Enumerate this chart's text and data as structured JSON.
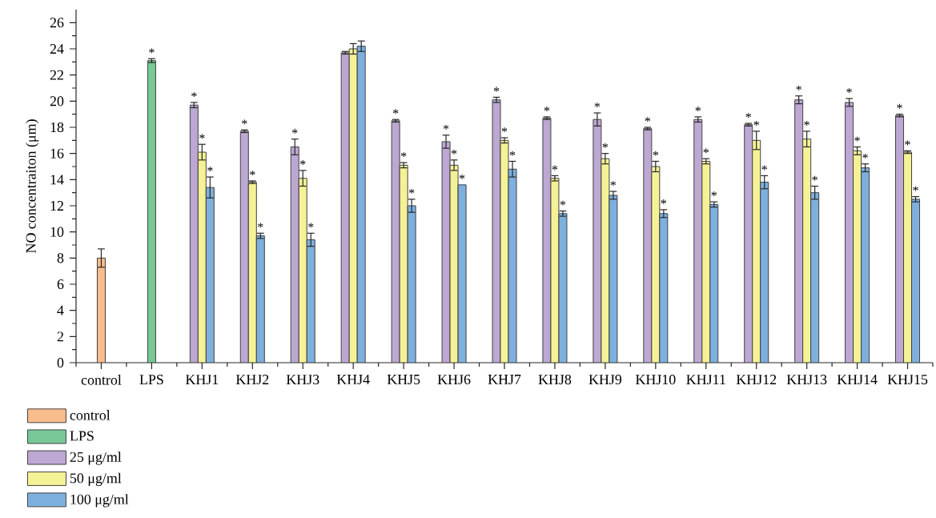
{
  "chart_data": {
    "type": "bar",
    "ylabel": "NO concentraiton (μm)",
    "categories": [
      "control",
      "LPS",
      "KHJ1",
      "KHJ2",
      "KHJ3",
      "KHJ4",
      "KHJ5",
      "KHJ6",
      "KHJ7",
      "KHJ8",
      "KHJ9",
      "KHJ10",
      "KHJ11",
      "KHJ12",
      "KHJ13",
      "KHJ14",
      "KHJ15"
    ],
    "ylim": [
      0,
      27
    ],
    "yticks": [
      0,
      {
        "value": 1,
        "label": null
      },
      2,
      {
        "value": 3,
        "label": null
      },
      4,
      {
        "value": 5,
        "label": null
      },
      6,
      {
        "value": 7,
        "label": null
      },
      8,
      {
        "value": 9,
        "label": null
      },
      10,
      {
        "value": 11,
        "label": null
      },
      12,
      {
        "value": 13,
        "label": null
      },
      14,
      {
        "value": 15,
        "label": null
      },
      16,
      {
        "value": 17,
        "label": null
      },
      18,
      {
        "value": 19,
        "label": null
      },
      20,
      {
        "value": 21,
        "label": null
      },
      22,
      {
        "value": 23,
        "label": null
      },
      24,
      {
        "value": 25,
        "label": null
      },
      26
    ],
    "legend": "bottom left",
    "series": [
      {
        "name": "control",
        "color": "#f9bc8c",
        "values": [
          8.0,
          null,
          null,
          null,
          null,
          null,
          null,
          null,
          null,
          null,
          null,
          null,
          null,
          null,
          null,
          null,
          null
        ],
        "errors": [
          0.7,
          null,
          null,
          null,
          null,
          null,
          null,
          null,
          null,
          null,
          null,
          null,
          null,
          null,
          null,
          null,
          null
        ]
      },
      {
        "name": "LPS",
        "color": "#78c898",
        "values": [
          null,
          23.1,
          null,
          null,
          null,
          null,
          null,
          null,
          null,
          null,
          null,
          null,
          null,
          null,
          null,
          null,
          null
        ],
        "errors": [
          null,
          0.15,
          null,
          null,
          null,
          null,
          null,
          null,
          null,
          null,
          null,
          null,
          null,
          null,
          null,
          null,
          null
        ],
        "value_labels": [
          null,
          "*",
          null,
          null,
          null,
          null,
          null,
          null,
          null,
          null,
          null,
          null,
          null,
          null,
          null,
          null,
          null
        ]
      },
      {
        "name": "25 μg/ml",
        "color": "#bca8d2",
        "values": [
          null,
          null,
          19.7,
          17.7,
          16.5,
          23.7,
          18.5,
          16.9,
          20.1,
          18.7,
          18.6,
          17.9,
          18.6,
          18.2,
          20.1,
          19.9,
          18.9
        ],
        "errors": [
          null,
          null,
          0.2,
          0.1,
          0.6,
          0.1,
          0.1,
          0.5,
          0.2,
          0.1,
          0.5,
          0.1,
          0.2,
          0.1,
          0.3,
          0.3,
          0.1
        ],
        "value_labels": [
          null,
          null,
          "*",
          "*",
          "*",
          null,
          "*",
          "*",
          "*",
          "*",
          "*",
          "*",
          "*",
          "*",
          "*",
          "*",
          "*"
        ]
      },
      {
        "name": "50 μg/ml",
        "color": "#f5f296",
        "values": [
          null,
          null,
          16.1,
          13.8,
          14.1,
          24.0,
          15.1,
          15.1,
          17.0,
          14.1,
          15.6,
          15.0,
          15.4,
          17.0,
          17.1,
          16.2,
          16.1
        ],
        "errors": [
          null,
          null,
          0.6,
          0.1,
          0.6,
          0.4,
          0.2,
          0.4,
          0.2,
          0.2,
          0.4,
          0.4,
          0.2,
          0.7,
          0.6,
          0.3,
          0.1
        ],
        "value_labels": [
          null,
          null,
          "*",
          "*",
          "*",
          null,
          "*",
          "*",
          "*",
          "*",
          "*",
          "*",
          "*",
          "*",
          "*",
          "*",
          "*"
        ]
      },
      {
        "name": "100 μg/ml",
        "color": "#7eb0de",
        "values": [
          null,
          null,
          13.4,
          9.7,
          9.4,
          24.2,
          12.0,
          13.6,
          14.8,
          11.4,
          12.8,
          11.4,
          12.1,
          13.8,
          13.0,
          14.9,
          12.5
        ],
        "errors": [
          null,
          null,
          0.8,
          0.2,
          0.5,
          0.4,
          0.5,
          null,
          0.6,
          0.2,
          0.3,
          0.3,
          0.2,
          0.5,
          0.5,
          0.3,
          0.2
        ],
        "value_labels": [
          null,
          null,
          "*",
          "*",
          "*",
          null,
          "*",
          "*",
          "*",
          "*",
          "*",
          "*",
          "*",
          "*",
          "*",
          "*",
          "*"
        ]
      }
    ]
  }
}
